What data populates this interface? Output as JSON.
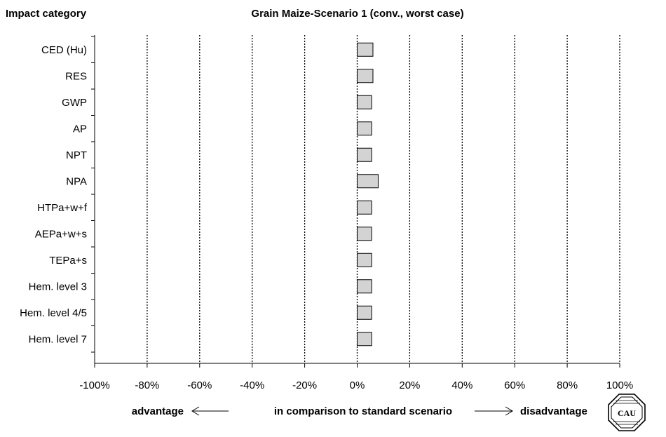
{
  "chart_data": {
    "type": "bar",
    "orientation": "horizontal",
    "title": "Grain Maize-Scenario 1 (conv., worst case)",
    "category_header": "Impact category",
    "categories": [
      "CED (Hu)",
      "RES",
      "GWP",
      "AP",
      "NPT",
      "NPA",
      "HTPa+w+f",
      "AEPa+w+s",
      "TEPa+s",
      "Hem. level 3",
      "Hem. level 4/5",
      "Hem. level 7"
    ],
    "values": [
      6,
      6,
      5.5,
      5.5,
      5.5,
      8,
      5.5,
      5.5,
      5.5,
      5.5,
      5.5,
      5.5
    ],
    "unit": "%",
    "xlim": [
      -100,
      100
    ],
    "xticks": [
      -100,
      -80,
      -60,
      -40,
      -20,
      0,
      20,
      40,
      60,
      80,
      100
    ],
    "xtick_labels": [
      "-100%",
      "-80%",
      "-60%",
      "-40%",
      "-20%",
      "0%",
      "20%",
      "40%",
      "60%",
      "80%",
      "100%"
    ],
    "grid": "vertical dotted",
    "bar_color": "#d3d3d3",
    "xlabel": {
      "left": "advantage",
      "center": "in comparison to standard scenario",
      "right": "disadvantage"
    }
  },
  "logo": {
    "text": "CAU"
  }
}
